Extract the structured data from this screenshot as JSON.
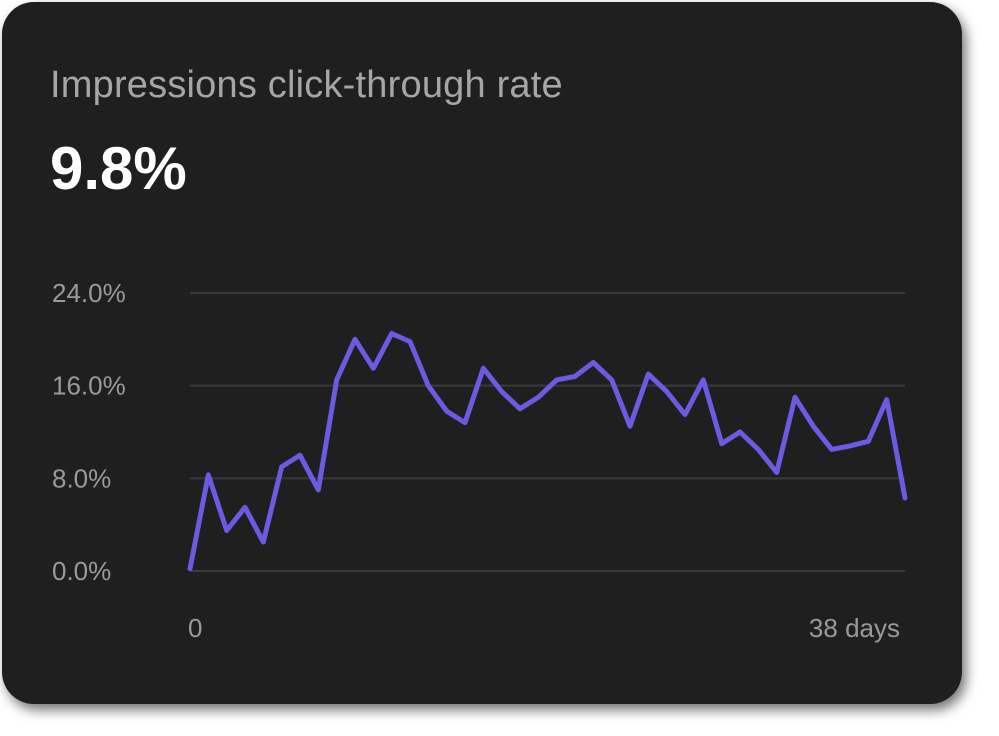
{
  "card": {
    "title": "Impressions click-through rate",
    "value": "9.8%"
  },
  "chart_data": {
    "type": "line",
    "ylim": [
      0,
      24
    ],
    "y_ticks": [
      0,
      8,
      16,
      24
    ],
    "y_tick_labels": [
      "0.0%",
      "8.0%",
      "16.0%",
      "24.0%"
    ],
    "x_tick_labels": [
      "0",
      "38 days"
    ],
    "grid": true,
    "series": [
      {
        "color": "#6a5be2",
        "values": [
          0.2,
          8.3,
          3.5,
          5.5,
          2.5,
          9.0,
          10.0,
          7.0,
          16.5,
          20.0,
          17.5,
          20.5,
          19.8,
          16.0,
          13.8,
          12.8,
          17.5,
          15.5,
          14.0,
          15.0,
          16.5,
          16.8,
          18.0,
          16.5,
          12.5,
          17.0,
          15.5,
          13.5,
          16.5,
          11.0,
          12.0,
          10.5,
          8.5,
          15.0,
          12.5,
          10.5,
          10.8,
          11.2,
          14.8,
          6.3
        ]
      }
    ]
  }
}
